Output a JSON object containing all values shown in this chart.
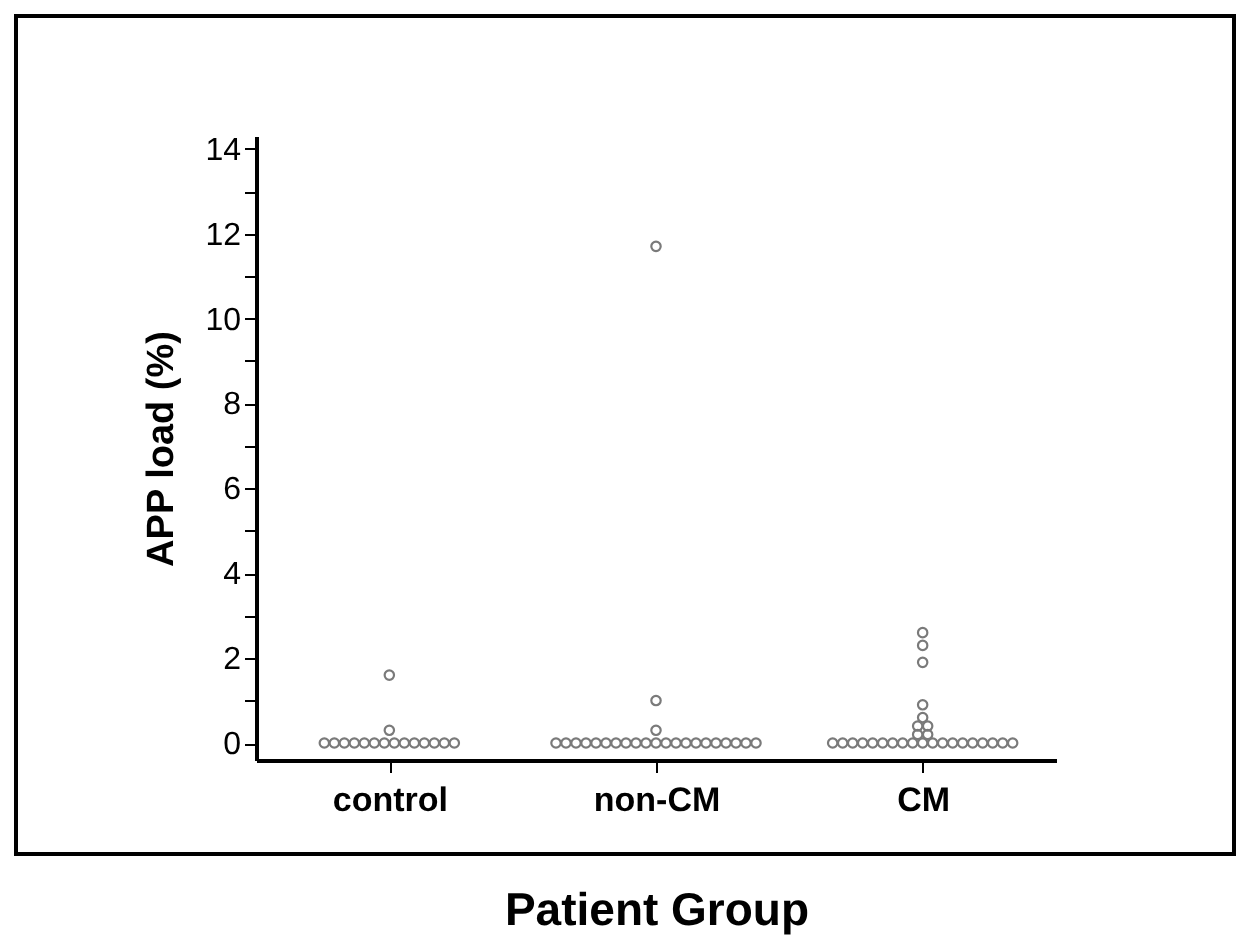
{
  "chart_data": {
    "type": "scatter",
    "xlabel": "Patient Group",
    "ylabel": "APP load (%)",
    "categories": [
      "control",
      "non-CM",
      "CM"
    ],
    "ylim": [
      -0.4,
      14.3
    ],
    "yticks": [
      0,
      {
        "value": 1,
        "label": null
      },
      2,
      {
        "value": 3,
        "label": null
      },
      4,
      {
        "value": 5,
        "label": null
      },
      6,
      {
        "value": 7,
        "label": null
      },
      8,
      {
        "value": 9,
        "label": null
      },
      10,
      {
        "value": 11,
        "label": null
      },
      12,
      {
        "value": 13,
        "label": null
      },
      14
    ],
    "grid": false,
    "marker": "circle",
    "series": [
      {
        "color": "#7a7a7a",
        "x": [
          "control",
          "control",
          "control",
          "control",
          "control",
          "control",
          "control",
          "control",
          "control",
          "control",
          "control",
          "control",
          "control",
          "control",
          "control",
          "control",
          "non-CM",
          "non-CM",
          "non-CM",
          "non-CM",
          "non-CM",
          "non-CM",
          "non-CM",
          "non-CM",
          "non-CM",
          "non-CM",
          "non-CM",
          "non-CM",
          "non-CM",
          "non-CM",
          "non-CM",
          "non-CM",
          "non-CM",
          "non-CM",
          "non-CM",
          "non-CM",
          "non-CM",
          "non-CM",
          "non-CM",
          "non-CM",
          "CM",
          "CM",
          "CM",
          "CM",
          "CM",
          "CM",
          "CM",
          "CM",
          "CM",
          "CM",
          "CM",
          "CM",
          "CM",
          "CM",
          "CM",
          "CM",
          "CM",
          "CM",
          "CM",
          "CM",
          "CM",
          "CM",
          "CM",
          "CM",
          "CM",
          "CM",
          "CM",
          "CM"
        ],
        "values": [
          0,
          0,
          0,
          0,
          0,
          0,
          0,
          0,
          0,
          0,
          0,
          0,
          0,
          0,
          0.3,
          1.6,
          0,
          0,
          0,
          0,
          0,
          0,
          0,
          0,
          0,
          0,
          0,
          0,
          0,
          0,
          0,
          0,
          0,
          0,
          0,
          0,
          0,
          0.3,
          1.0,
          11.7,
          0,
          0,
          0,
          0,
          0,
          0,
          0,
          0,
          0,
          0,
          0,
          0,
          0,
          0,
          0,
          0,
          0,
          0,
          0,
          0.2,
          0.2,
          0.4,
          0.4,
          0.6,
          0.9,
          1.9,
          2.3,
          2.6
        ]
      }
    ]
  }
}
